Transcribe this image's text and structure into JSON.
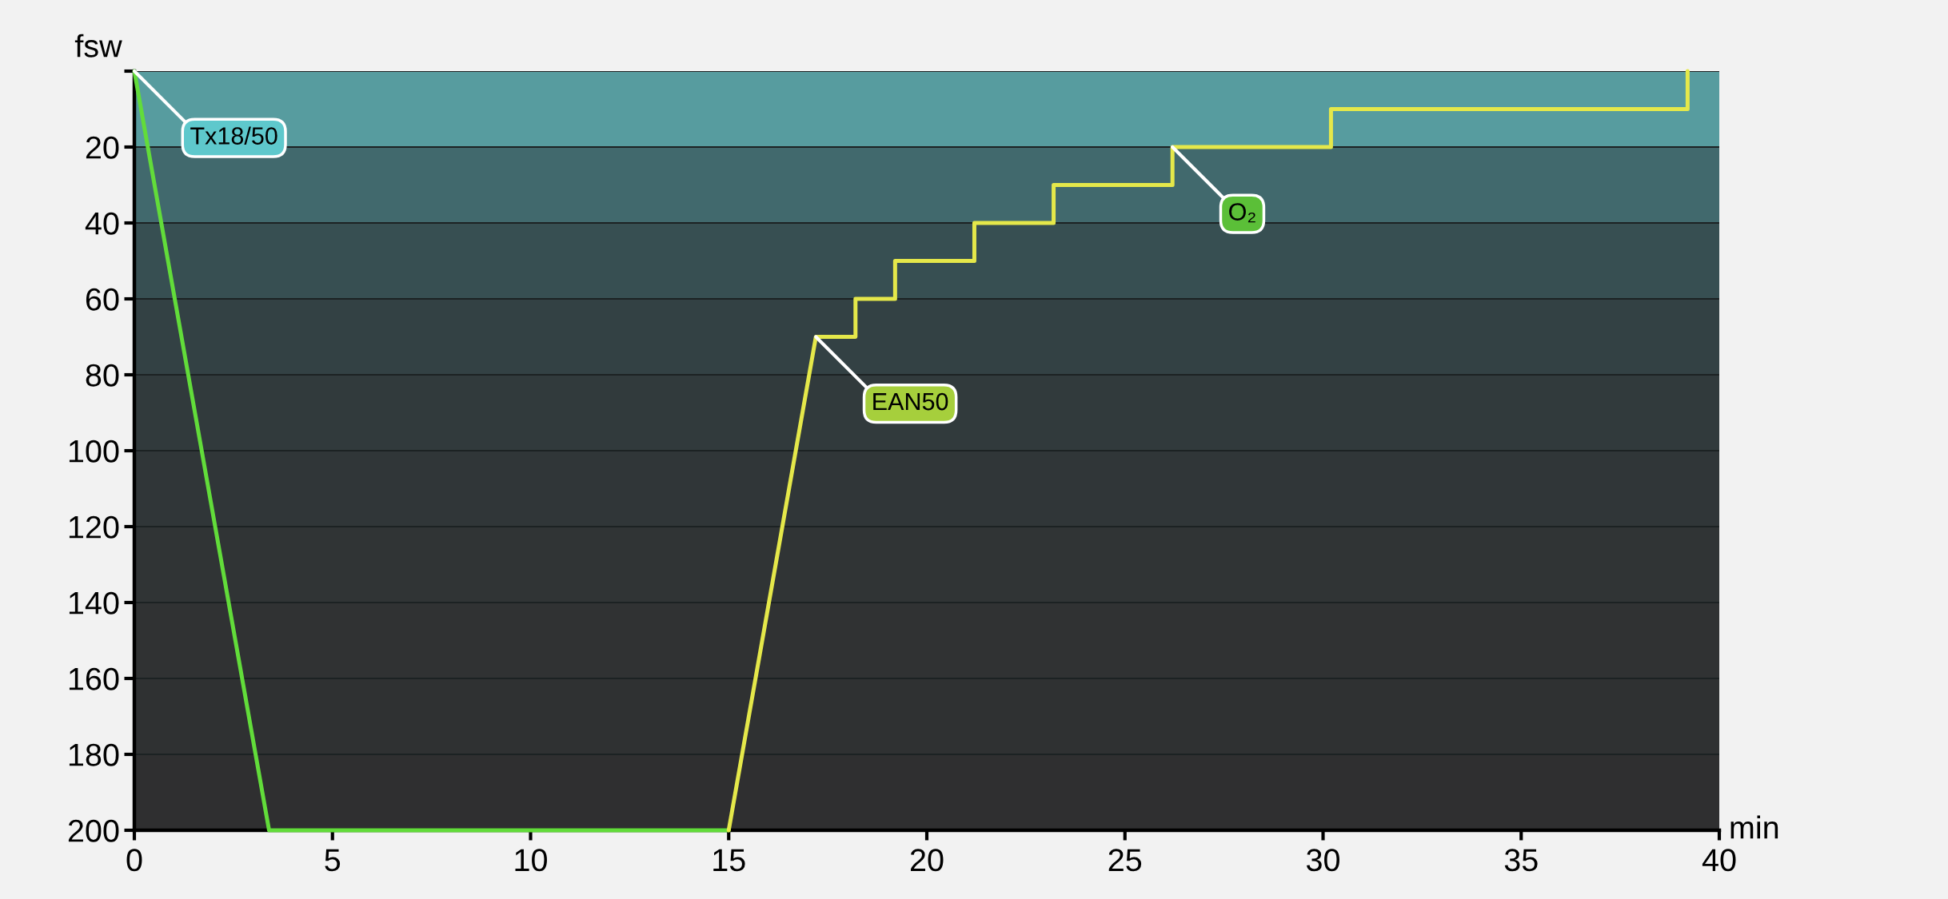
{
  "chart_data": {
    "type": "line",
    "xlabel": "min",
    "ylabel": "fsw",
    "xlim": [
      0,
      40
    ],
    "ylim": [
      200,
      0
    ],
    "xticks": [
      0,
      5,
      10,
      15,
      20,
      25,
      30,
      35,
      40
    ],
    "yticks": [
      {
        "value": 0,
        "label": null
      },
      20,
      40,
      60,
      80,
      100,
      120,
      140,
      160,
      180,
      200
    ],
    "grid": "y",
    "series": [
      {
        "color": "#62dc3a",
        "x": [
          0,
          3.4,
          15
        ],
        "values": [
          0,
          200,
          200
        ]
      },
      {
        "color": "#e5e84a",
        "x": [
          15,
          17.2,
          18.2,
          18.2,
          19.2,
          19.2,
          21.2,
          21.2,
          23.2,
          23.2,
          26.2,
          26.2,
          30.2,
          30.2,
          39.2,
          39.2
        ],
        "values": [
          200,
          70,
          70,
          60,
          60,
          50,
          50,
          40,
          40,
          30,
          30,
          20,
          20,
          10,
          10,
          0
        ]
      }
    ],
    "bands": [
      {
        "axis": "y",
        "from": 0,
        "to": 20,
        "color": "#579c9f"
      },
      {
        "axis": "y",
        "from": 20,
        "to": 40,
        "color": "#41696d"
      },
      {
        "axis": "y",
        "from": 40,
        "to": 60,
        "color": "#374f52"
      },
      {
        "axis": "y",
        "from": 60,
        "to": 80,
        "color": "#334144"
      },
      {
        "axis": "y",
        "from": 80,
        "to": 100,
        "color": "#313a3c"
      },
      {
        "axis": "y",
        "from": 100,
        "to": 120,
        "color": "#303638"
      },
      {
        "axis": "y",
        "from": 120,
        "to": 140,
        "color": "#303435"
      },
      {
        "axis": "y",
        "from": 140,
        "to": 160,
        "color": "#303233"
      },
      {
        "axis": "y",
        "from": 160,
        "to": 180,
        "color": "#2f3132"
      },
      {
        "axis": "y",
        "from": 180,
        "to": 200,
        "color": "#2f2f30"
      }
    ],
    "annotations": [
      {
        "text": "Tx18/50",
        "x": 0,
        "y": 0
      },
      {
        "text": "EAN50",
        "x": 17.2,
        "y": 70
      },
      {
        "text": "O₂",
        "x": 26.2,
        "y": 20
      }
    ]
  }
}
